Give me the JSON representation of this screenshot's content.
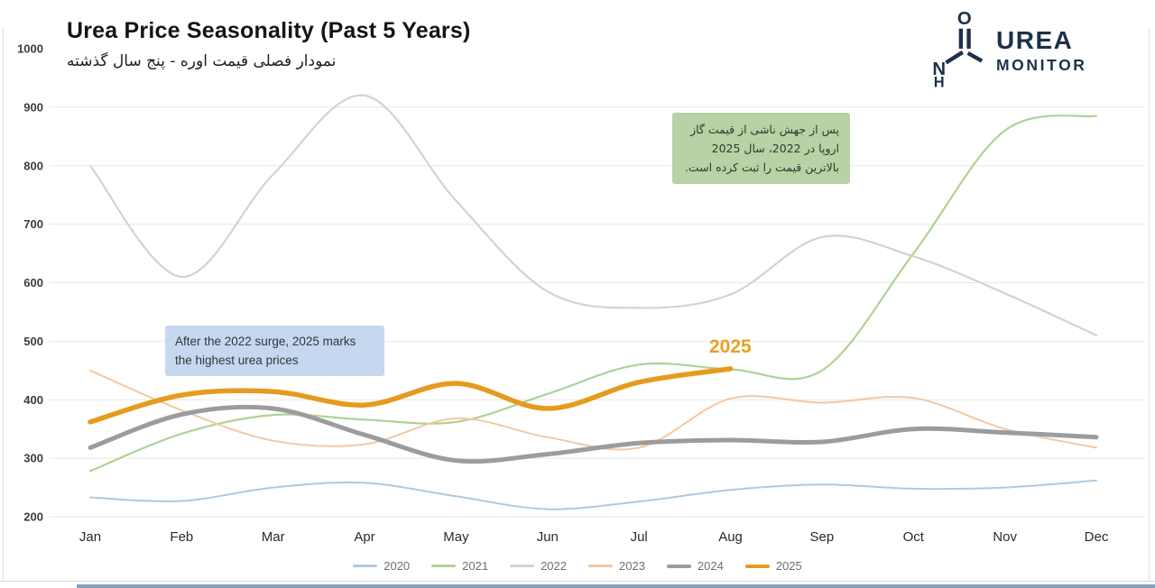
{
  "logo": {
    "line1": "UREA",
    "line2": "MONITOR",
    "color": "#1d3049",
    "icon": "urea-molecule-icon"
  },
  "accents": {
    "bottom_bar": "#84a0b8",
    "grid_color": "#e7e7e7",
    "highlight_orange": "#e8a11f"
  },
  "chart_data": {
    "type": "line",
    "title": "Urea Price Seasonality (Past 5 Years)",
    "subtitle_fa": "نمودار فصلی قیمت اوره - پنج سال گذشته",
    "x_categories": [
      "Jan",
      "Feb",
      "Mar",
      "Apr",
      "May",
      "Jun",
      "Jul",
      "Aug",
      "Sep",
      "Oct",
      "Nov",
      "Dec"
    ],
    "ylim": [
      200,
      1000
    ],
    "yticks": [
      200,
      300,
      400,
      500,
      600,
      700,
      800,
      900,
      1000
    ],
    "grid": true,
    "legend_position": "bottom-center",
    "series": [
      {
        "name": "2020",
        "color": "#b0c9e2",
        "width": 2,
        "values": [
          233,
          227,
          250,
          258,
          235,
          213,
          226,
          246,
          255,
          248,
          250,
          262
        ]
      },
      {
        "name": "2021",
        "color": "#afd295",
        "width": 2.2,
        "values": [
          278,
          342,
          374,
          366,
          362,
          410,
          460,
          452,
          450,
          650,
          860,
          885
        ]
      },
      {
        "name": "2022",
        "color": "#d3d3d3",
        "width": 2.2,
        "values": [
          800,
          610,
          785,
          920,
          740,
          585,
          557,
          580,
          678,
          645,
          582,
          510
        ]
      },
      {
        "name": "2023",
        "color": "#f3c8a4",
        "width": 2,
        "values": [
          450,
          382,
          330,
          324,
          368,
          336,
          318,
          402,
          395,
          403,
          350,
          318
        ]
      },
      {
        "name": "2024",
        "color": "#9c9c9c",
        "width": 5,
        "values": [
          318,
          375,
          385,
          340,
          296,
          307,
          326,
          331,
          328,
          350,
          344,
          336
        ]
      },
      {
        "name": "2025",
        "color": "#e59b1d",
        "width": 5.5,
        "end_label": "2025",
        "values": [
          362,
          408,
          414,
          391,
          428,
          385,
          430,
          453
        ]
      }
    ],
    "annotations": [
      {
        "id": "en",
        "text": "After the 2022 surge, 2025 marks the highest urea prices",
        "bg": "#c5d8ef",
        "position": "middle-left"
      },
      {
        "id": "fa",
        "text": "پس از جهش ناشی از قیمت گاز اروپا در 2022، سال 2025 بالاترین قیمت را ثبت کرده است.",
        "bg": "#b8d1a5",
        "position": "top-right",
        "direction": "rtl"
      }
    ]
  }
}
